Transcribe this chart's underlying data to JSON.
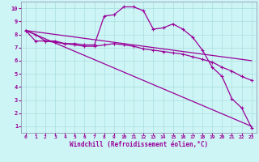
{
  "xlabel": "Windchill (Refroidissement éolien,°C)",
  "background_color": "#cef5f5",
  "grid_color": "#aadddd",
  "line_color": "#990099",
  "spine_color": "#8888aa",
  "xlim": [
    -0.5,
    23.5
  ],
  "ylim": [
    0.5,
    10.5
  ],
  "xticks": [
    0,
    1,
    2,
    3,
    4,
    5,
    6,
    7,
    8,
    9,
    10,
    11,
    12,
    13,
    14,
    15,
    16,
    17,
    18,
    19,
    20,
    21,
    22,
    23
  ],
  "yticks": [
    1,
    2,
    3,
    4,
    5,
    6,
    7,
    8,
    9,
    10
  ],
  "line1_x": [
    0,
    1,
    2,
    3,
    4,
    5,
    6,
    7,
    8,
    9,
    10,
    11,
    12,
    13,
    14,
    15,
    16,
    17,
    18,
    19,
    20,
    21,
    22,
    23
  ],
  "line1_y": [
    8.3,
    8.0,
    7.5,
    7.5,
    7.3,
    7.3,
    7.2,
    7.2,
    9.4,
    9.5,
    10.1,
    10.1,
    9.8,
    8.4,
    8.5,
    8.8,
    8.4,
    7.8,
    6.8,
    5.5,
    4.8,
    3.1,
    2.4,
    0.9
  ],
  "line2_x": [
    0,
    1,
    2,
    3,
    4,
    5,
    6,
    7,
    8,
    9,
    10,
    11,
    12,
    13,
    14,
    15,
    16,
    17,
    18,
    19,
    20,
    21,
    22,
    23
  ],
  "line2_y": [
    8.3,
    7.5,
    7.5,
    7.4,
    7.3,
    7.2,
    7.1,
    7.1,
    7.2,
    7.3,
    7.2,
    7.1,
    6.9,
    6.8,
    6.7,
    6.6,
    6.5,
    6.3,
    6.1,
    5.9,
    5.5,
    5.2,
    4.8,
    4.5
  ],
  "line3_x": [
    0,
    23
  ],
  "line3_y": [
    8.3,
    6.0
  ],
  "line4_x": [
    0,
    23
  ],
  "line4_y": [
    8.3,
    1.0
  ]
}
